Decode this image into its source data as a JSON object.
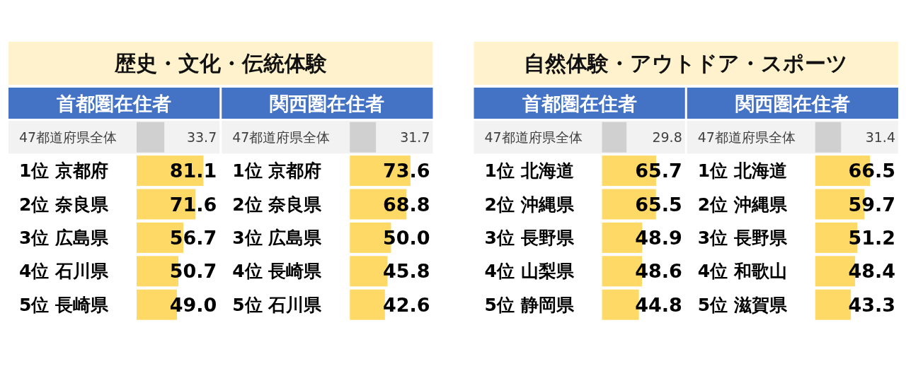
{
  "chart_data": [
    {
      "type": "bar",
      "orientation": "horizontal",
      "title": "歴史・文化・伝統体験",
      "subtitle": "首都圏在住者",
      "tick_labels": "y",
      "categories": [
        "47都道府県全体",
        "1位 京都府",
        "2位 奈良県",
        "3位 広島県",
        "4位 石川県",
        "5位 長崎県"
      ],
      "values": [
        33.7,
        81.1,
        71.6,
        56.7,
        50.7,
        49.0
      ],
      "value_labels": [
        "33.7",
        "81.1",
        "71.6",
        "56.7",
        "50.7",
        "49.0"
      ],
      "colors": [
        "#d0d0d0",
        "#ffd966",
        "#ffd966",
        "#ffd966",
        "#ffd966",
        "#ffd966"
      ],
      "bands": [
        {
          "axis": "y",
          "from": "47都道府県全体",
          "to": "47都道府県全体",
          "color": "#f2f2f2"
        }
      ]
    },
    {
      "type": "bar",
      "orientation": "horizontal",
      "subtitle": "関西圏在住者",
      "tick_labels": "y",
      "categories": [
        "47都道府県全体",
        "1位 京都府",
        "2位 奈良県",
        "3位 広島県",
        "4位 長崎県",
        "5位 石川県"
      ],
      "values": [
        31.7,
        73.6,
        68.8,
        50.0,
        45.8,
        42.6
      ],
      "value_labels": [
        "31.7",
        "73.6",
        "68.8",
        "50.0",
        "45.8",
        "42.6"
      ],
      "colors": [
        "#d0d0d0",
        "#ffd966",
        "#ffd966",
        "#ffd966",
        "#ffd966",
        "#ffd966"
      ],
      "bands": [
        {
          "axis": "y",
          "from": "47都道府県全体",
          "to": "47都道府県全体",
          "color": "#f2f2f2"
        }
      ]
    },
    {
      "type": "bar",
      "orientation": "horizontal",
      "title": "自然体験・アウトドア・スポーツ",
      "subtitle": "首都圏在住者",
      "tick_labels": "y",
      "categories": [
        "47都道府県全体",
        "1位 北海道",
        "2位 沖縄県",
        "3位 長野県",
        "4位 山梨県",
        "5位 静岡県"
      ],
      "values": [
        29.8,
        65.7,
        65.5,
        48.9,
        48.6,
        44.8
      ],
      "value_labels": [
        "29.8",
        "65.7",
        "65.5",
        "48.9",
        "48.6",
        "44.8"
      ],
      "colors": [
        "#d0d0d0",
        "#ffd966",
        "#ffd966",
        "#ffd966",
        "#ffd966",
        "#ffd966"
      ],
      "bands": [
        {
          "axis": "y",
          "from": "47都道府県全体",
          "to": "47都道府県全体",
          "color": "#f2f2f2"
        }
      ]
    },
    {
      "type": "bar",
      "orientation": "horizontal",
      "subtitle": "関西圏在住者",
      "tick_labels": "y",
      "categories": [
        "47都道府県全体",
        "1位 北海道",
        "2位 沖縄県",
        "3位 長野県",
        "4位 和歌山",
        "5位 滋賀県"
      ],
      "values": [
        31.4,
        66.5,
        59.7,
        51.2,
        48.4,
        43.3
      ],
      "value_labels": [
        "31.4",
        "66.5",
        "59.7",
        "51.2",
        "48.4",
        "43.3"
      ],
      "colors": [
        "#d0d0d0",
        "#ffd966",
        "#ffd966",
        "#ffd966",
        "#ffd966",
        "#ffd966"
      ],
      "bands": [
        {
          "axis": "y",
          "from": "47都道府県全体",
          "to": "47都道府県全体",
          "color": "#f2f2f2"
        }
      ]
    }
  ]
}
